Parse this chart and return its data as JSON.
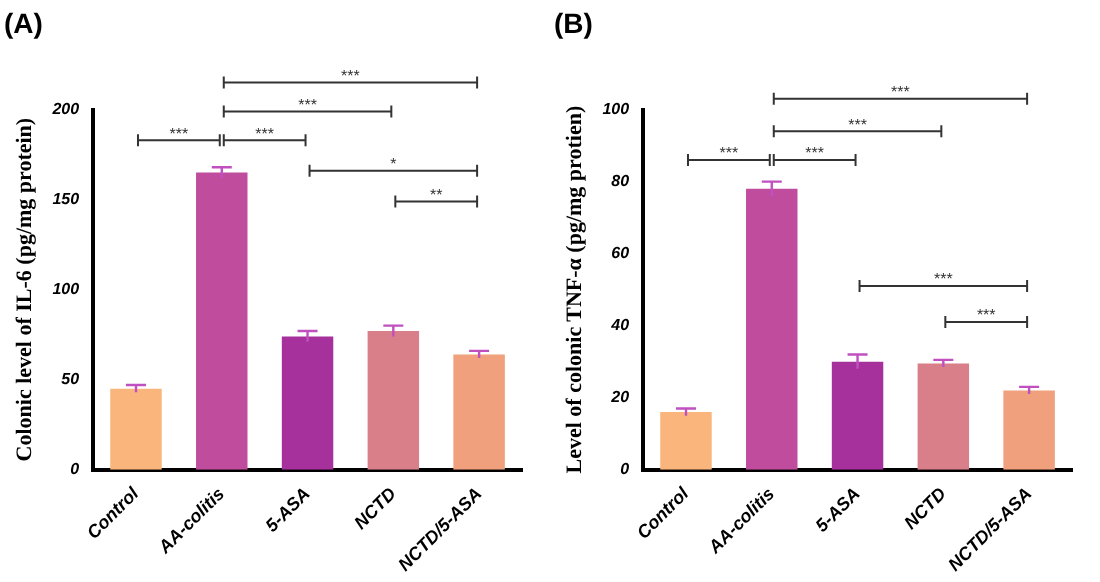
{
  "chart_data": [
    {
      "type": "bar",
      "title": "(A)",
      "ylabel": "Colonic level of IL-6 (pg/mg protein)",
      "categories": [
        "Control",
        "AA-colitis",
        "5-ASA",
        "NCTD",
        "NCTD/5-ASA"
      ],
      "values": [
        45,
        165,
        74,
        77,
        64
      ],
      "errors": [
        2,
        3,
        3,
        3,
        2
      ],
      "colors": [
        "#f9b57c",
        "#c04c9e",
        "#a6309c",
        "#d97f8a",
        "#f0a07c"
      ],
      "ylim": [
        0,
        200
      ],
      "yticks": [
        0,
        50,
        100,
        150,
        200
      ],
      "grid": false,
      "legend": false,
      "annotations": [
        "***",
        "***",
        "***",
        "***",
        "*",
        "**"
      ]
    },
    {
      "type": "bar",
      "title": "(B)",
      "ylabel": "Level of colonic TNF-α (pg/mg protien)",
      "categories": [
        "Control",
        "AA-colitis",
        "5-ASA",
        "NCTD",
        "NCTD/5-ASA"
      ],
      "values": [
        16,
        78,
        30,
        29.5,
        22
      ],
      "errors": [
        1,
        2,
        2,
        1,
        1
      ],
      "colors": [
        "#f9b57c",
        "#c04c9e",
        "#a6309c",
        "#d97f8a",
        "#f0a07c"
      ],
      "ylim": [
        0,
        100
      ],
      "yticks": [
        0,
        20,
        40,
        60,
        80,
        100
      ],
      "grid": false,
      "legend": false,
      "annotations": [
        "***",
        "***",
        "***",
        "***",
        "***",
        "***"
      ]
    }
  ]
}
